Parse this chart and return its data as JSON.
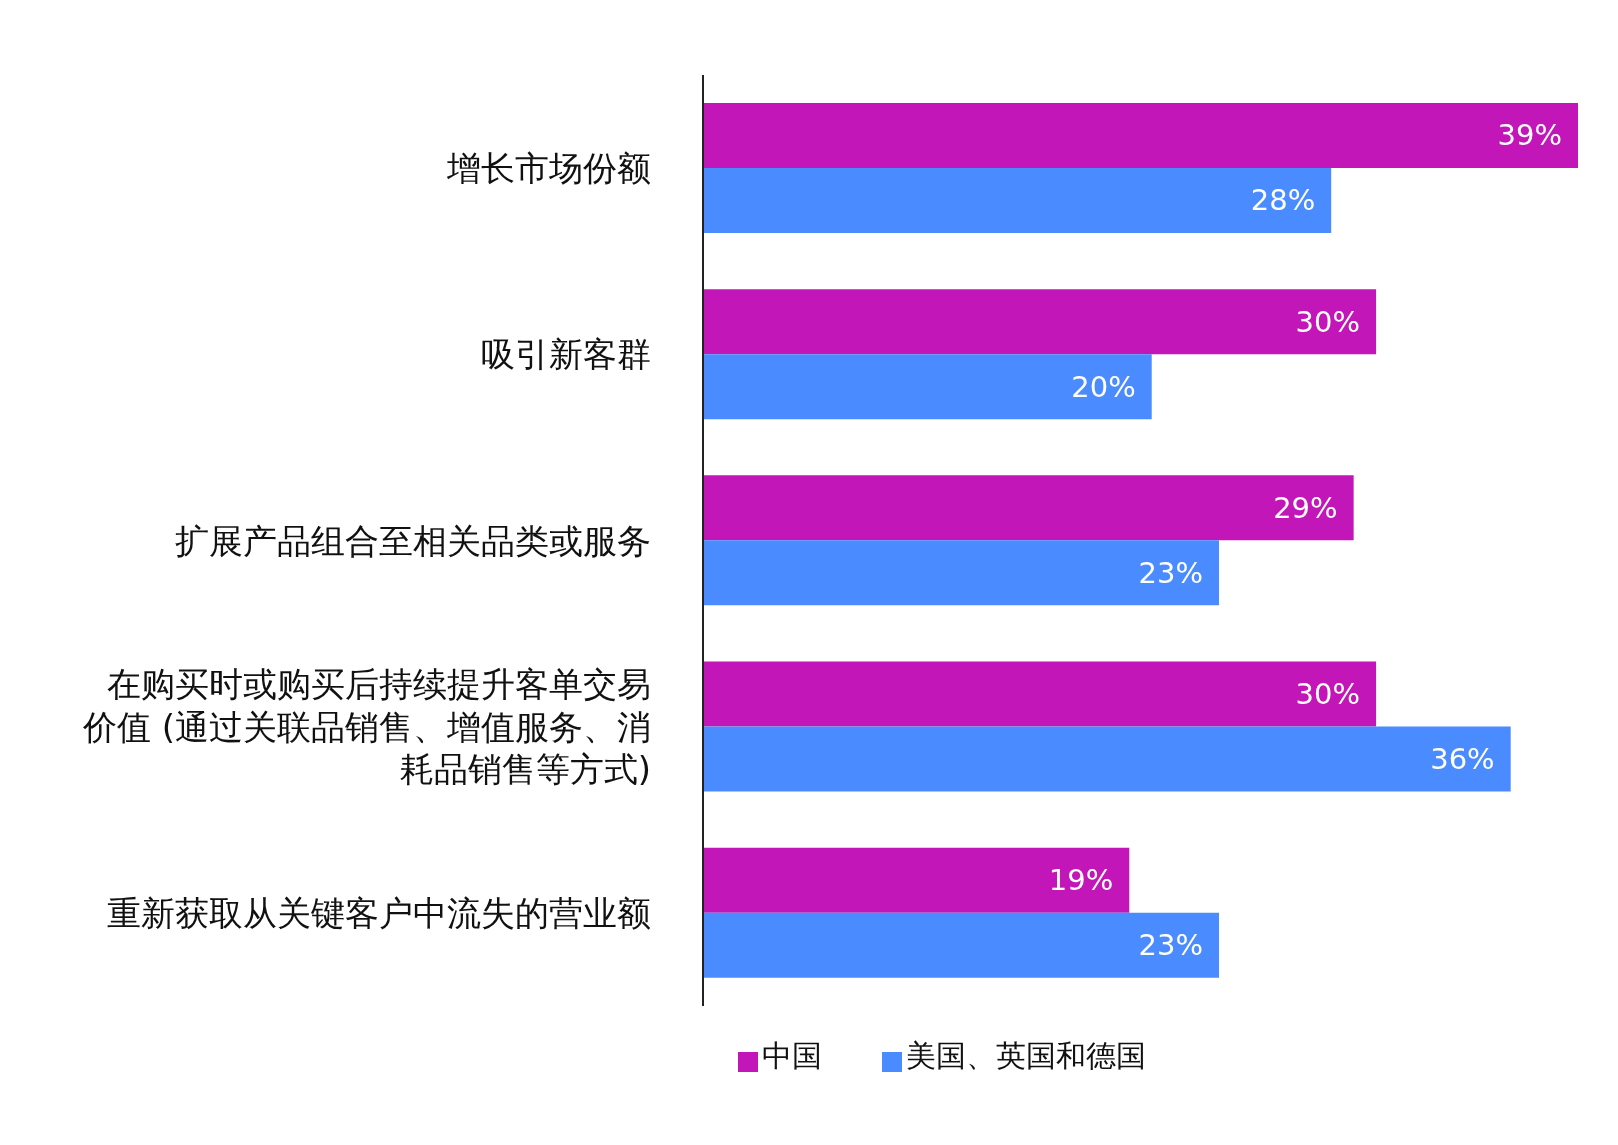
{
  "chart_data": {
    "type": "bar",
    "orientation": "horizontal",
    "categories": [
      "增长市场份额",
      "吸引新客群",
      "扩展产品组合至相关品类或服务",
      "在购买时或购买后持续提升客单交易价值 (通过关联品销售、增值服务、消耗品销售等方式)",
      "重新获取从关键客户中流失的营业额"
    ],
    "series": [
      {
        "name": "中国",
        "color": "#c316b8",
        "values": [
          39,
          30,
          29,
          30,
          19
        ],
        "value_labels": [
          "39%",
          "30%",
          "29%",
          "30%",
          "19%"
        ]
      },
      {
        "name": "美国、英国和德国",
        "color": "#4a8bff",
        "values": [
          28,
          20,
          23,
          36,
          23
        ],
        "value_labels": [
          "28%",
          "20%",
          "23%",
          "36%",
          "23%"
        ]
      }
    ],
    "legend": "bottom"
  }
}
